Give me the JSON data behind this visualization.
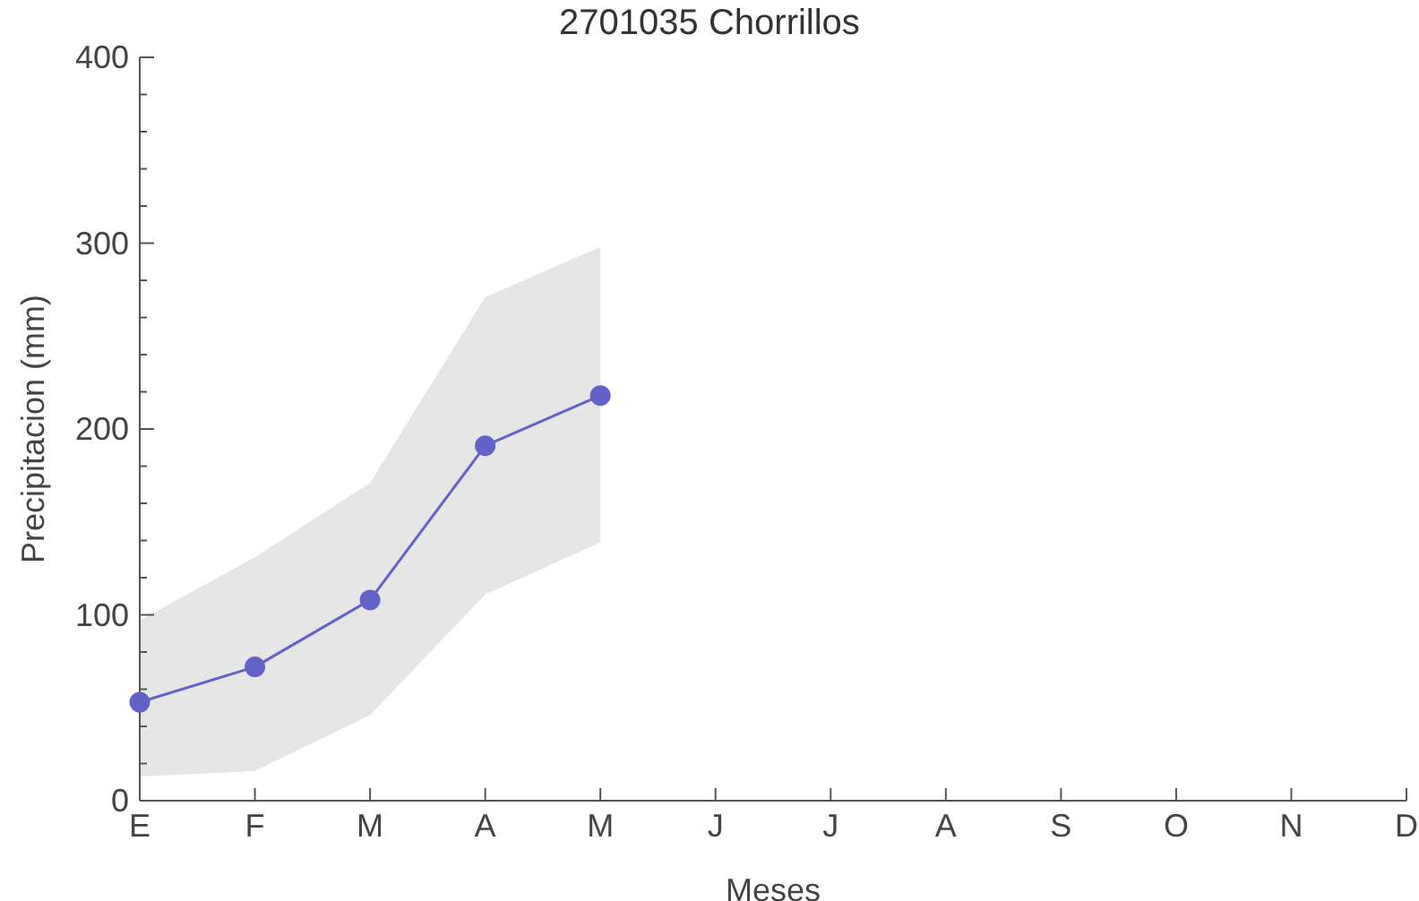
{
  "chart_data": {
    "type": "line",
    "title": "2701035 Chorrillos",
    "xlabel": "Meses",
    "ylabel": "Precipitacion (mm)",
    "categories": [
      "E",
      "F",
      "M",
      "A",
      "M",
      "J",
      "J",
      "A",
      "S",
      "O",
      "N",
      "D"
    ],
    "series": [
      {
        "color": "#6262c8",
        "values": [
          53,
          72,
          108,
          191,
          218,
          null,
          null,
          null,
          null,
          null,
          null,
          null
        ],
        "lower": [
          13,
          16,
          46,
          111,
          139,
          null,
          null,
          null,
          null,
          null,
          null,
          null
        ],
        "upper": [
          97,
          131,
          171,
          271,
          298,
          null,
          null,
          null,
          null,
          null,
          null,
          null
        ]
      }
    ],
    "ylim": [
      0,
      400
    ],
    "yticks": [
      0,
      {
        "value": 20,
        "label": null
      },
      {
        "value": 40,
        "label": null
      },
      {
        "value": 60,
        "label": null
      },
      {
        "value": 80,
        "label": null
      },
      100,
      {
        "value": 120,
        "label": null
      },
      {
        "value": 140,
        "label": null
      },
      {
        "value": 160,
        "label": null
      },
      {
        "value": 180,
        "label": null
      },
      200,
      {
        "value": 220,
        "label": null
      },
      {
        "value": 240,
        "label": null
      },
      {
        "value": 260,
        "label": null
      },
      {
        "value": 280,
        "label": null
      },
      300,
      {
        "value": 320,
        "label": null
      },
      {
        "value": 340,
        "label": null
      },
      {
        "value": 360,
        "label": null
      },
      {
        "value": 380,
        "label": null
      },
      400
    ],
    "marker": "circle",
    "line_style": "solid",
    "grid": false,
    "legend": false
  }
}
